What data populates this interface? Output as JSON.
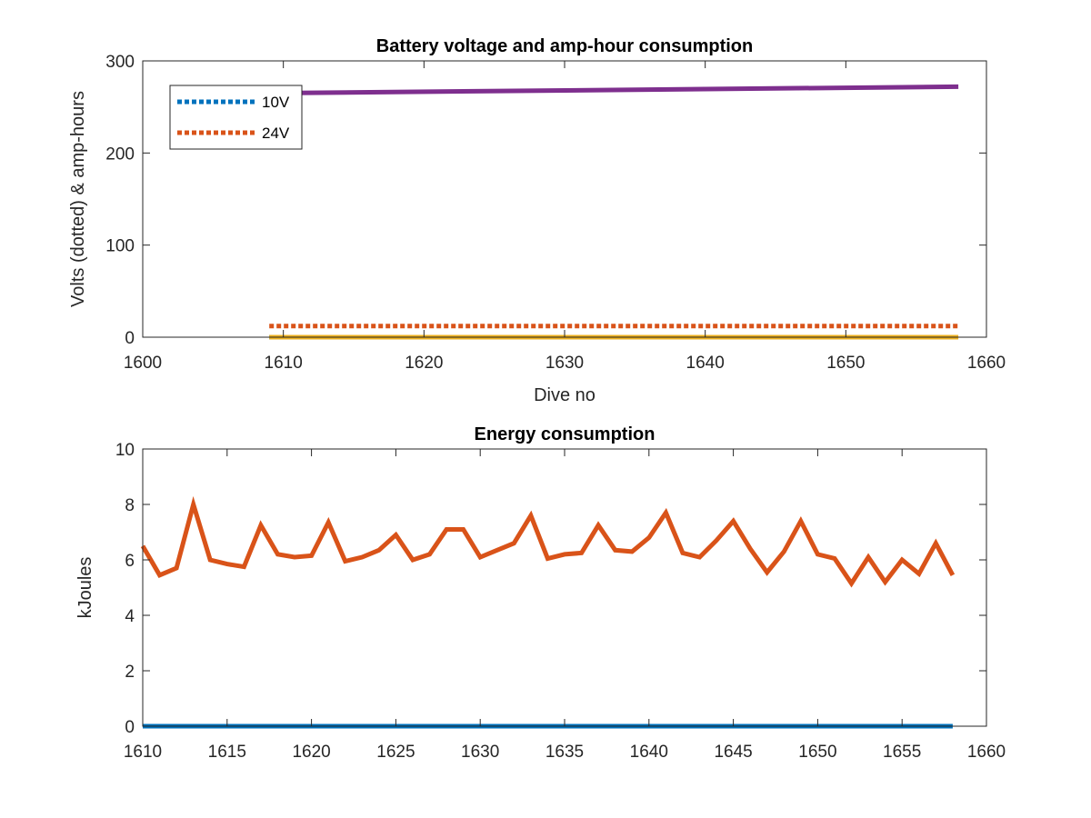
{
  "chart_data": [
    {
      "type": "line",
      "title": "Battery voltage and amp-hour consumption",
      "xlabel": "Dive no",
      "ylabel": "Volts (dotted) & amp-hours",
      "xlim": [
        1600,
        1660
      ],
      "ylim": [
        0,
        300
      ],
      "xticks": [
        1600,
        1610,
        1620,
        1630,
        1640,
        1650,
        1660
      ],
      "yticks": [
        0,
        100,
        200,
        300
      ],
      "grid": false,
      "legend_position": "top-left",
      "series": [
        {
          "name": "10V",
          "style": "dotted",
          "color": "#0072BD",
          "x": [
            1609,
            1658
          ],
          "y": [
            0,
            0
          ]
        },
        {
          "name": "24V",
          "style": "dotted",
          "color": "#D95319",
          "x": [
            1609,
            1658
          ],
          "y": [
            12,
            12
          ]
        },
        {
          "style": "solid",
          "color": "#EDB120",
          "x": [
            1609,
            1658
          ],
          "y": [
            0,
            0
          ]
        },
        {
          "style": "solid",
          "color": "#7E2F8E",
          "x": [
            1609,
            1658
          ],
          "y": [
            265,
            272
          ]
        }
      ]
    },
    {
      "type": "line",
      "title": "Energy consumption",
      "xlabel": "",
      "ylabel": "kJoules",
      "xlim": [
        1610,
        1660
      ],
      "ylim": [
        0,
        10
      ],
      "xticks": [
        1610,
        1615,
        1620,
        1625,
        1630,
        1635,
        1640,
        1645,
        1650,
        1655,
        1660
      ],
      "yticks": [
        0,
        2,
        4,
        6,
        8,
        10
      ],
      "grid": false,
      "series": [
        {
          "style": "solid",
          "color": "#0072BD",
          "x": [
            1610,
            1658
          ],
          "y": [
            0,
            0
          ]
        },
        {
          "style": "solid",
          "color": "#D95319",
          "x": [
            1610,
            1611,
            1612,
            1613,
            1614,
            1615,
            1616,
            1617,
            1618,
            1619,
            1620,
            1621,
            1622,
            1623,
            1624,
            1625,
            1626,
            1627,
            1628,
            1629,
            1630,
            1631,
            1632,
            1633,
            1634,
            1635,
            1636,
            1637,
            1638,
            1639,
            1640,
            1641,
            1642,
            1643,
            1644,
            1645,
            1646,
            1647,
            1648,
            1649,
            1650,
            1651,
            1652,
            1653,
            1654,
            1655,
            1656,
            1657,
            1658
          ],
          "y": [
            6.5,
            5.45,
            5.7,
            8.0,
            6.0,
            5.85,
            5.75,
            7.25,
            6.2,
            6.1,
            6.15,
            7.35,
            5.95,
            6.1,
            6.35,
            6.9,
            6.0,
            6.2,
            7.1,
            7.1,
            6.1,
            6.35,
            6.6,
            7.6,
            6.05,
            6.2,
            6.25,
            7.25,
            6.35,
            6.3,
            6.8,
            7.7,
            6.25,
            6.1,
            6.7,
            7.4,
            6.4,
            5.55,
            6.3,
            7.4,
            6.2,
            6.05,
            5.15,
            6.1,
            5.2,
            6.0,
            5.5,
            6.6,
            5.45
          ]
        }
      ]
    }
  ]
}
